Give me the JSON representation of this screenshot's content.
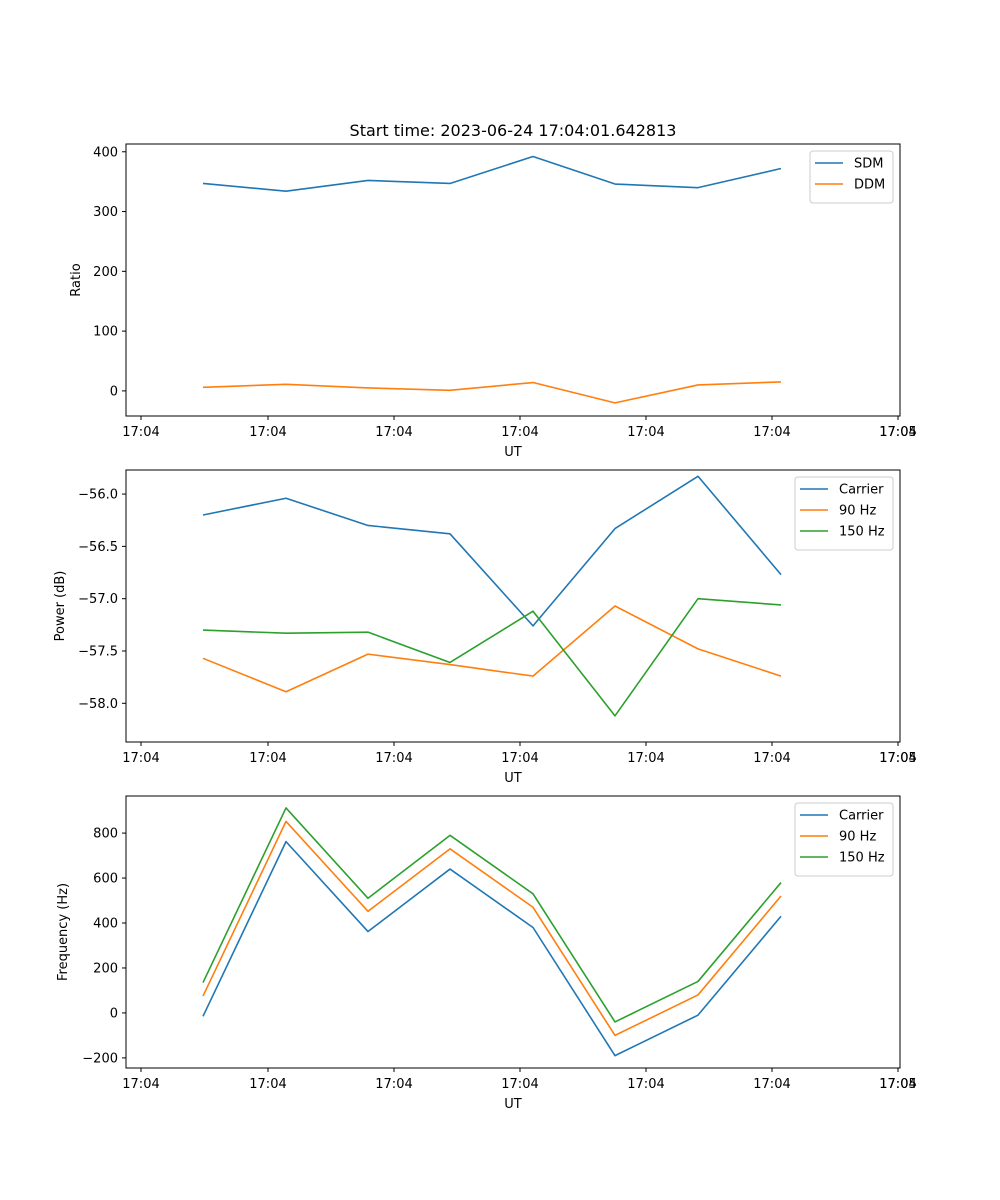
{
  "chart_data": [
    {
      "type": "line",
      "title": "Start time: 2023-06-24 17:04:01.642813",
      "xlabel": "UT",
      "ylabel": "Ratio",
      "x_tick_labels": [
        "17:04",
        "17:04",
        "17:04",
        "17:04",
        "17:04",
        "17:04",
        "17:04",
        "17:05"
      ],
      "y_ticks": [
        0,
        100,
        200,
        300,
        400
      ],
      "y_tick_labels": [
        "0",
        "100",
        "200",
        "300",
        "400"
      ],
      "ylim": [
        -42,
        413
      ],
      "grid": false,
      "legend_position": "top-right",
      "series": [
        {
          "name": "SDM",
          "color": "#1f77b4",
          "values": [
            347,
            334,
            352,
            347,
            392,
            346,
            340,
            372
          ]
        },
        {
          "name": "DDM",
          "color": "#ff7f0e",
          "values": [
            6,
            11,
            5,
            1,
            14,
            -20,
            10,
            15
          ]
        }
      ]
    },
    {
      "type": "line",
      "title": "",
      "xlabel": "UT",
      "ylabel": "Power (dB)",
      "x_tick_labels": [
        "17:04",
        "17:04",
        "17:04",
        "17:04",
        "17:04",
        "17:04",
        "17:04",
        "17:05"
      ],
      "y_ticks": [
        -56.0,
        -56.5,
        -57.0,
        -57.5,
        -58.0
      ],
      "y_tick_labels": [
        "−56.0",
        "−56.5",
        "−57.0",
        "−57.5",
        "−58.0"
      ],
      "ylim": [
        -58.37,
        -55.77
      ],
      "grid": false,
      "legend_position": "top-right",
      "series": [
        {
          "name": "Carrier",
          "color": "#1f77b4",
          "values": [
            -56.2,
            -56.04,
            -56.3,
            -56.38,
            -57.26,
            -56.33,
            -55.83,
            -56.77
          ]
        },
        {
          "name": "90 Hz",
          "color": "#ff7f0e",
          "values": [
            -57.57,
            -57.89,
            -57.53,
            -57.63,
            -57.74,
            -57.07,
            -57.48,
            -57.74
          ]
        },
        {
          "name": "150 Hz",
          "color": "#2ca02c",
          "values": [
            -57.3,
            -57.33,
            -57.32,
            -57.61,
            -57.12,
            -58.12,
            -57.0,
            -57.06
          ]
        }
      ]
    },
    {
      "type": "line",
      "title": "",
      "xlabel": "UT",
      "ylabel": "Frequency (Hz)",
      "x_tick_labels": [
        "17:04",
        "17:04",
        "17:04",
        "17:04",
        "17:04",
        "17:04",
        "17:04",
        "17:05"
      ],
      "y_ticks": [
        -200,
        0,
        200,
        400,
        600,
        800
      ],
      "y_tick_labels": [
        "−200",
        "0",
        "200",
        "400",
        "600",
        "800"
      ],
      "ylim": [
        -245,
        965
      ],
      "grid": false,
      "legend_position": "top-right",
      "series": [
        {
          "name": "Carrier",
          "color": "#1f77b4",
          "values": [
            -15,
            762,
            362,
            640,
            380,
            -190,
            -10,
            430
          ]
        },
        {
          "name": "90 Hz",
          "color": "#ff7f0e",
          "values": [
            75,
            852,
            452,
            730,
            470,
            -100,
            80,
            520
          ]
        },
        {
          "name": "150 Hz",
          "color": "#2ca02c",
          "values": [
            135,
            912,
            510,
            790,
            530,
            -40,
            140,
            580
          ]
        }
      ]
    }
  ]
}
